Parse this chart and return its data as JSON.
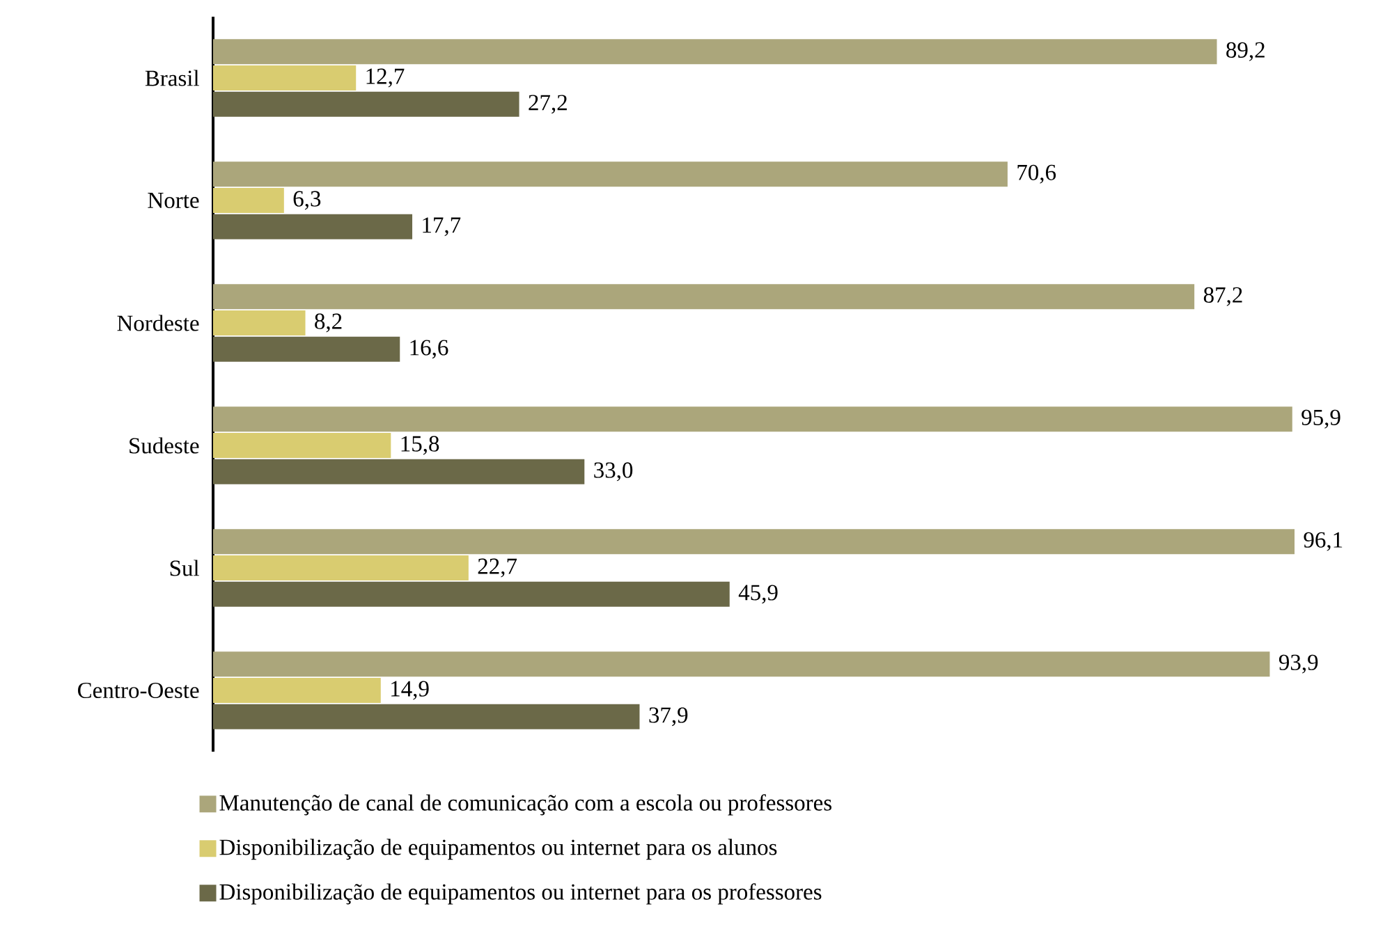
{
  "chart_data": {
    "type": "bar",
    "orientation": "horizontal",
    "categories": [
      "Brasil",
      "Norte",
      "Nordeste",
      "Sudeste",
      "Sul",
      "Centro-Oeste"
    ],
    "series": [
      {
        "name": "Manutenção de canal de comunicação com a escola ou professores",
        "color": "#aba67b",
        "values": [
          89.2,
          70.6,
          87.2,
          95.9,
          96.1,
          93.9
        ],
        "value_labels": [
          "89,2",
          "70,6",
          "87,2",
          "95,9",
          "96,1",
          "93,9"
        ]
      },
      {
        "name": "Disponibilização de equipamentos ou internet para os alunos",
        "color": "#d9cc70",
        "values": [
          12.7,
          6.3,
          8.2,
          15.8,
          22.7,
          14.9
        ],
        "value_labels": [
          "12,7",
          "6,3",
          "8,2",
          "15,8",
          "22,7",
          "14,9"
        ]
      },
      {
        "name": "Disponibilização de equipamentos ou internet para os professores",
        "color": "#6b6948",
        "values": [
          27.2,
          17.7,
          16.6,
          33.0,
          45.9,
          37.9
        ],
        "value_labels": [
          "27,2",
          "17,7",
          "16,6",
          "33,0",
          "45,9",
          "37,9"
        ]
      }
    ],
    "legend": "bottom"
  }
}
